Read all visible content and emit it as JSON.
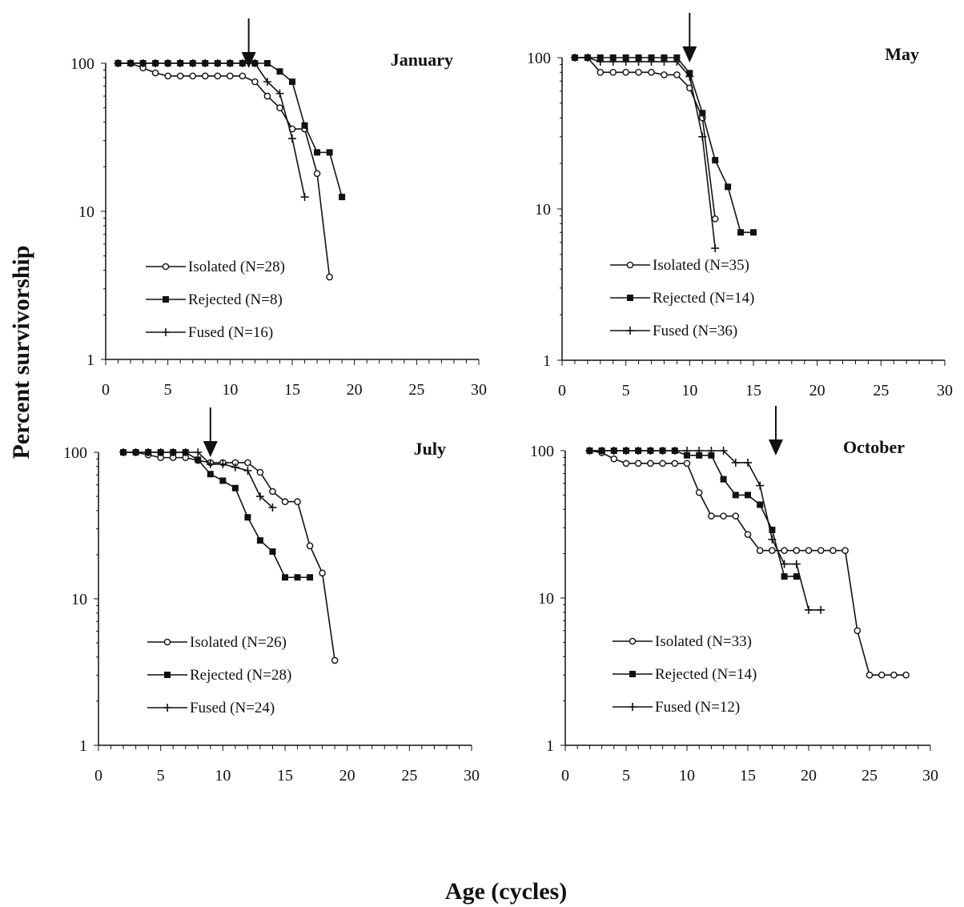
{
  "figure": {
    "ylabel": "Percent survivorship",
    "xlabel": "Age (cycles)"
  },
  "chart_data": [
    {
      "type": "line",
      "title": "January",
      "xlim": [
        0,
        30
      ],
      "ylim": [
        1,
        100
      ],
      "yscale": "log",
      "x_ticks": [
        0,
        5,
        10,
        15,
        20,
        25,
        30
      ],
      "y_ticks": [
        1,
        10,
        100
      ],
      "arrow_at_x": 11.5,
      "legend": "lower-left",
      "series": [
        {
          "name": "Isolated (N=28)",
          "marker": "open-circle",
          "x": [
            1,
            2,
            3,
            4,
            5,
            6,
            7,
            8,
            9,
            10,
            11,
            12,
            13,
            14,
            15,
            16,
            17,
            18
          ],
          "y": [
            100,
            100,
            93,
            86,
            82,
            82,
            82,
            82,
            82,
            82,
            82,
            75,
            60,
            50,
            36,
            36,
            18,
            3.6
          ]
        },
        {
          "name": "Rejected (N=8)",
          "marker": "filled-square",
          "x": [
            1,
            2,
            3,
            4,
            5,
            6,
            7,
            8,
            9,
            10,
            11,
            12,
            13,
            14,
            15,
            16,
            17,
            18,
            19
          ],
          "y": [
            100,
            100,
            100,
            100,
            100,
            100,
            100,
            100,
            100,
            100,
            100,
            100,
            100,
            88,
            75,
            38,
            25,
            25,
            12.5
          ]
        },
        {
          "name": "Fused (N=16)",
          "marker": "plus",
          "x": [
            1,
            2,
            3,
            4,
            5,
            6,
            7,
            8,
            9,
            10,
            11,
            12,
            13,
            14,
            15,
            16
          ],
          "y": [
            100,
            100,
            100,
            100,
            100,
            100,
            100,
            100,
            100,
            100,
            100,
            100,
            75,
            62.5,
            31,
            12.5
          ]
        }
      ]
    },
    {
      "type": "line",
      "title": "May",
      "xlim": [
        0,
        30
      ],
      "ylim": [
        1,
        100
      ],
      "yscale": "log",
      "x_ticks": [
        0,
        5,
        10,
        15,
        20,
        25,
        30
      ],
      "y_ticks": [
        1,
        10,
        100
      ],
      "arrow_at_x": 10,
      "legend": "lower-left",
      "series": [
        {
          "name": "Isolated (N=35)",
          "marker": "open-circle",
          "x": [
            1,
            2,
            3,
            4,
            5,
            6,
            7,
            8,
            9,
            10,
            11,
            12
          ],
          "y": [
            100,
            100,
            80,
            80,
            80,
            80,
            80,
            77,
            77,
            63,
            40,
            8.6
          ]
        },
        {
          "name": "Rejected (N=14)",
          "marker": "filled-square",
          "x": [
            1,
            2,
            3,
            4,
            5,
            6,
            7,
            8,
            9,
            10,
            11,
            12,
            13,
            14,
            15
          ],
          "y": [
            100,
            100,
            100,
            100,
            100,
            100,
            100,
            100,
            100,
            79,
            43,
            21,
            14,
            7,
            7
          ]
        },
        {
          "name": "Fused (N=36)",
          "marker": "plus",
          "x": [
            1,
            2,
            3,
            4,
            5,
            6,
            7,
            8,
            9,
            10,
            11,
            12
          ],
          "y": [
            100,
            100,
            94,
            94,
            94,
            94,
            94,
            94,
            94,
            75,
            30,
            5.5
          ]
        }
      ]
    },
    {
      "type": "line",
      "title": "July",
      "xlim": [
        0,
        30
      ],
      "ylim": [
        1,
        100
      ],
      "yscale": "log",
      "x_ticks": [
        0,
        5,
        10,
        15,
        20,
        25,
        30
      ],
      "y_ticks": [
        1,
        10,
        100
      ],
      "arrow_at_x": 9,
      "legend": "lower-left",
      "series": [
        {
          "name": "Isolated (N=26)",
          "marker": "open-circle",
          "x": [
            2,
            3,
            4,
            5,
            6,
            7,
            8,
            9,
            10,
            11,
            12,
            13,
            14,
            15,
            16,
            17,
            18,
            19
          ],
          "y": [
            100,
            100,
            96,
            92,
            92,
            92,
            88,
            85,
            85,
            85,
            85,
            73,
            54,
            46,
            46,
            23,
            15,
            3.8
          ]
        },
        {
          "name": "Rejected (N=28)",
          "marker": "filled-square",
          "x": [
            2,
            3,
            4,
            5,
            6,
            7,
            8,
            9,
            10,
            11,
            12,
            13,
            14,
            15,
            16,
            17
          ],
          "y": [
            100,
            100,
            100,
            100,
            100,
            100,
            89,
            71,
            64,
            57,
            36,
            25,
            21,
            14,
            14,
            14
          ]
        },
        {
          "name": "Fused (N=24)",
          "marker": "plus",
          "x": [
            2,
            3,
            4,
            5,
            6,
            7,
            8,
            9,
            10,
            11,
            12,
            13,
            14
          ],
          "y": [
            100,
            100,
            100,
            100,
            100,
            100,
            100,
            83,
            83,
            79,
            75,
            50,
            42
          ]
        }
      ]
    },
    {
      "type": "line",
      "title": "October",
      "xlim": [
        0,
        30
      ],
      "ylim": [
        1,
        100
      ],
      "yscale": "log",
      "x_ticks": [
        0,
        5,
        10,
        15,
        20,
        25,
        30
      ],
      "y_ticks": [
        1,
        10,
        100
      ],
      "arrow_at_x": 17.3,
      "legend": "lower-left",
      "series": [
        {
          "name": "Isolated (N=33)",
          "marker": "open-circle",
          "x": [
            2,
            3,
            4,
            5,
            6,
            7,
            8,
            9,
            10,
            11,
            12,
            13,
            14,
            15,
            16,
            17,
            18,
            19,
            20,
            21,
            22,
            23,
            24,
            25,
            26,
            27,
            28
          ],
          "y": [
            100,
            97,
            88,
            82,
            82,
            82,
            82,
            82,
            82,
            52,
            36,
            36,
            36,
            27,
            21,
            21,
            21,
            21,
            21,
            21,
            21,
            21,
            6,
            3,
            3,
            3,
            3
          ]
        },
        {
          "name": "Rejected (N=14)",
          "marker": "filled-square",
          "x": [
            2,
            3,
            4,
            5,
            6,
            7,
            8,
            9,
            10,
            11,
            12,
            13,
            14,
            15,
            16,
            17,
            18,
            19
          ],
          "y": [
            100,
            100,
            100,
            100,
            100,
            100,
            100,
            100,
            93,
            93,
            93,
            64,
            50,
            50,
            43,
            29,
            14,
            14
          ]
        },
        {
          "name": "Fused (N=12)",
          "marker": "plus",
          "x": [
            2,
            3,
            4,
            5,
            6,
            7,
            8,
            9,
            10,
            11,
            12,
            13,
            14,
            15,
            16,
            17,
            18,
            19,
            20,
            21
          ],
          "y": [
            100,
            100,
            100,
            100,
            100,
            100,
            100,
            100,
            100,
            100,
            100,
            100,
            83,
            83,
            58,
            25,
            17,
            17,
            8.3,
            8.3
          ]
        }
      ]
    }
  ]
}
